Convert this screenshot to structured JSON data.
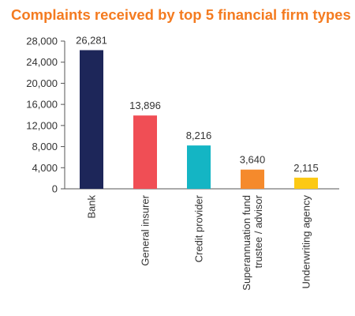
{
  "chart_data": {
    "type": "bar",
    "title": "Complaints received by top 5 financial firm types",
    "xlabel": "",
    "ylabel": "",
    "ylim": [
      0,
      28000
    ],
    "yticks": [
      0,
      4000,
      8000,
      12000,
      16000,
      20000,
      24000,
      28000
    ],
    "ytick_labels": [
      "0",
      "4,000",
      "8,000",
      "12,000",
      "16,000",
      "20,000",
      "24,000",
      "28,000"
    ],
    "categories": [
      "Bank",
      "General insurer",
      "Credit provider",
      "Superannuation fund trustee / advisor",
      "Underwriting agency"
    ],
    "category_lines": [
      [
        "Bank"
      ],
      [
        "General insurer"
      ],
      [
        "Credit provider"
      ],
      [
        "Superannuation fund",
        "trustee / advisor"
      ],
      [
        "Underwriting agency"
      ]
    ],
    "values": [
      26281,
      13896,
      8216,
      3640,
      2115
    ],
    "value_labels": [
      "26,281",
      "13,896",
      "8,216",
      "3,640",
      "2,115"
    ],
    "bar_colors": [
      "#1d2659",
      "#f04e55",
      "#14b5c4",
      "#f58a2c",
      "#fcc914"
    ],
    "grid": false,
    "legend": "none"
  }
}
